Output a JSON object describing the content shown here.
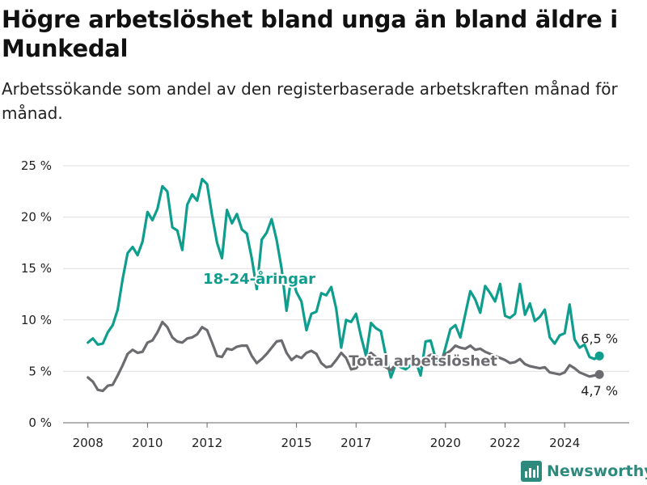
{
  "header": {
    "title": "Högre arbetslöshet bland unga än bland äldre i Munkedal",
    "subtitle": "Arbetssökande som andel av den registerbaserade arbetskraften månad för månad."
  },
  "brand": {
    "name": "Newsworthy",
    "color": "#2f8a7e",
    "icon": "bar-chart-logo-icon"
  },
  "chart_data": {
    "type": "line",
    "title": "Högre arbetslöshet bland unga än bland äldre i Munkedal",
    "subtitle": "Arbetssökande som andel av den registerbaserade arbetskraften månad för månad.",
    "xlabel": "",
    "ylabel": "",
    "x_ticks": [
      "2008",
      "2010",
      "2012",
      "2015",
      "2017",
      "2020",
      "2022",
      "2024"
    ],
    "y_ticks": [
      "0 %",
      "5 %",
      "10 %",
      "15 %",
      "20 %",
      "25 %"
    ],
    "ylim": [
      0,
      25
    ],
    "xlim": [
      "2007-03",
      "2026-03"
    ],
    "grid": true,
    "series": [
      {
        "name": "18-24-åringar",
        "color": "#0f9e8e",
        "end_label": "6,5 %",
        "points": [
          [
            "2008-01",
            7.8
          ],
          [
            "2008-03",
            8.2
          ],
          [
            "2008-05",
            7.6
          ],
          [
            "2008-07",
            7.7
          ],
          [
            "2008-09",
            8.8
          ],
          [
            "2008-11",
            9.5
          ],
          [
            "2009-01",
            11
          ],
          [
            "2009-03",
            14
          ],
          [
            "2009-05",
            16.5
          ],
          [
            "2009-07",
            17.1
          ],
          [
            "2009-09",
            16.3
          ],
          [
            "2009-11",
            17.6
          ],
          [
            "2010-01",
            20.5
          ],
          [
            "2010-03",
            19.7
          ],
          [
            "2010-05",
            20.8
          ],
          [
            "2010-07",
            23
          ],
          [
            "2010-09",
            22.5
          ],
          [
            "2010-11",
            19
          ],
          [
            "2011-01",
            18.7
          ],
          [
            "2011-03",
            16.8
          ],
          [
            "2011-05",
            21.2
          ],
          [
            "2011-07",
            22.2
          ],
          [
            "2011-09",
            21.6
          ],
          [
            "2011-11",
            23.7
          ],
          [
            "2012-01",
            23.2
          ],
          [
            "2012-03",
            20.2
          ],
          [
            "2012-05",
            17.5
          ],
          [
            "2012-07",
            16
          ],
          [
            "2012-09",
            20.7
          ],
          [
            "2012-11",
            19.4
          ],
          [
            "2013-01",
            20.3
          ],
          [
            "2013-03",
            18.8
          ],
          [
            "2013-05",
            18.4
          ],
          [
            "2013-07",
            16
          ],
          [
            "2013-09",
            13
          ],
          [
            "2013-11",
            17.8
          ],
          [
            "2014-01",
            18.5
          ],
          [
            "2014-03",
            19.8
          ],
          [
            "2014-05",
            17.8
          ],
          [
            "2014-07",
            15
          ],
          [
            "2014-09",
            10.9
          ],
          [
            "2014-11",
            14.3
          ],
          [
            "2015-01",
            12.7
          ],
          [
            "2015-03",
            11.8
          ],
          [
            "2015-05",
            9
          ],
          [
            "2015-07",
            10.6
          ],
          [
            "2015-09",
            10.8
          ],
          [
            "2015-11",
            12.6
          ],
          [
            "2016-01",
            12.4
          ],
          [
            "2016-03",
            13.2
          ],
          [
            "2016-05",
            11.1
          ],
          [
            "2016-07",
            7.3
          ],
          [
            "2016-09",
            10
          ],
          [
            "2016-11",
            9.8
          ],
          [
            "2017-01",
            10.6
          ],
          [
            "2017-03",
            8.4
          ],
          [
            "2017-05",
            6.5
          ],
          [
            "2017-07",
            9.7
          ],
          [
            "2017-09",
            9.2
          ],
          [
            "2017-11",
            8.9
          ],
          [
            "2018-01",
            6.5
          ],
          [
            "2018-03",
            4.4
          ],
          [
            "2018-05",
            5.7
          ],
          [
            "2018-07",
            5.4
          ],
          [
            "2018-09",
            5.2
          ],
          [
            "2018-11",
            5.6
          ],
          [
            "2019-01",
            6
          ],
          [
            "2019-03",
            4.6
          ],
          [
            "2019-05",
            7.9
          ],
          [
            "2019-07",
            8
          ],
          [
            "2019-09",
            6.3
          ],
          [
            "2019-11",
            5.6
          ],
          [
            "2020-01",
            7.3
          ],
          [
            "2020-03",
            9.1
          ],
          [
            "2020-05",
            9.5
          ],
          [
            "2020-07",
            8.3
          ],
          [
            "2020-09",
            10.6
          ],
          [
            "2020-11",
            12.8
          ],
          [
            "2021-01",
            12
          ],
          [
            "2021-03",
            10.7
          ],
          [
            "2021-05",
            13.3
          ],
          [
            "2021-07",
            12.6
          ],
          [
            "2021-09",
            11.8
          ],
          [
            "2021-11",
            13.5
          ],
          [
            "2022-01",
            10.4
          ],
          [
            "2022-03",
            10.2
          ],
          [
            "2022-05",
            10.6
          ],
          [
            "2022-07",
            13.5
          ],
          [
            "2022-09",
            10.5
          ],
          [
            "2022-11",
            11.6
          ],
          [
            "2023-01",
            9.9
          ],
          [
            "2023-03",
            10.3
          ],
          [
            "2023-05",
            11
          ],
          [
            "2023-07",
            8.3
          ],
          [
            "2023-09",
            7.7
          ],
          [
            "2023-11",
            8.5
          ],
          [
            "2024-01",
            8.7
          ],
          [
            "2024-03",
            11.5
          ],
          [
            "2024-05",
            8.1
          ],
          [
            "2024-07",
            7.3
          ],
          [
            "2024-09",
            7.6
          ],
          [
            "2024-11",
            6.4
          ],
          [
            "2025-01",
            6.2
          ],
          [
            "2025-03",
            6.5
          ]
        ]
      },
      {
        "name": "Total arbetslöshet",
        "color": "#6c6c70",
        "end_label": "4,7 %",
        "points": [
          [
            "2008-01",
            4.4
          ],
          [
            "2008-03",
            4
          ],
          [
            "2008-05",
            3.2
          ],
          [
            "2008-07",
            3.1
          ],
          [
            "2008-09",
            3.6
          ],
          [
            "2008-11",
            3.7
          ],
          [
            "2009-01",
            4.6
          ],
          [
            "2009-03",
            5.6
          ],
          [
            "2009-05",
            6.7
          ],
          [
            "2009-07",
            7.1
          ],
          [
            "2009-09",
            6.8
          ],
          [
            "2009-11",
            6.9
          ],
          [
            "2010-01",
            7.8
          ],
          [
            "2010-03",
            8
          ],
          [
            "2010-05",
            8.8
          ],
          [
            "2010-07",
            9.8
          ],
          [
            "2010-09",
            9.3
          ],
          [
            "2010-11",
            8.3
          ],
          [
            "2011-01",
            7.9
          ],
          [
            "2011-03",
            7.8
          ],
          [
            "2011-05",
            8.2
          ],
          [
            "2011-07",
            8.3
          ],
          [
            "2011-09",
            8.6
          ],
          [
            "2011-11",
            9.3
          ],
          [
            "2012-01",
            9
          ],
          [
            "2012-03",
            7.8
          ],
          [
            "2012-05",
            6.5
          ],
          [
            "2012-07",
            6.4
          ],
          [
            "2012-09",
            7.2
          ],
          [
            "2012-11",
            7.1
          ],
          [
            "2013-01",
            7.4
          ],
          [
            "2013-03",
            7.5
          ],
          [
            "2013-05",
            7.5
          ],
          [
            "2013-07",
            6.5
          ],
          [
            "2013-09",
            5.8
          ],
          [
            "2013-11",
            6.2
          ],
          [
            "2014-01",
            6.7
          ],
          [
            "2014-03",
            7.3
          ],
          [
            "2014-05",
            7.9
          ],
          [
            "2014-07",
            8
          ],
          [
            "2014-09",
            6.8
          ],
          [
            "2014-11",
            6.1
          ],
          [
            "2015-01",
            6.5
          ],
          [
            "2015-03",
            6.3
          ],
          [
            "2015-05",
            6.8
          ],
          [
            "2015-07",
            7
          ],
          [
            "2015-09",
            6.7
          ],
          [
            "2015-11",
            5.8
          ],
          [
            "2016-01",
            5.4
          ],
          [
            "2016-03",
            5.5
          ],
          [
            "2016-05",
            6.1
          ],
          [
            "2016-07",
            6.8
          ],
          [
            "2016-09",
            6.3
          ],
          [
            "2016-11",
            5.2
          ],
          [
            "2017-01",
            5.3
          ],
          [
            "2017-03",
            5.9
          ],
          [
            "2017-05",
            6.3
          ],
          [
            "2017-07",
            6.8
          ],
          [
            "2017-09",
            6.4
          ],
          [
            "2017-11",
            5.6
          ],
          [
            "2018-01",
            5.4
          ],
          [
            "2018-03",
            5.1
          ],
          [
            "2018-05",
            5.7
          ],
          [
            "2018-07",
            6
          ],
          [
            "2018-09",
            6.1
          ],
          [
            "2018-11",
            6.2
          ],
          [
            "2019-01",
            6
          ],
          [
            "2019-03",
            5.5
          ],
          [
            "2019-05",
            6.3
          ],
          [
            "2019-07",
            6.6
          ],
          [
            "2019-09",
            6.5
          ],
          [
            "2019-11",
            6.2
          ],
          [
            "2020-01",
            6.7
          ],
          [
            "2020-03",
            7
          ],
          [
            "2020-05",
            7.5
          ],
          [
            "2020-07",
            7.3
          ],
          [
            "2020-09",
            7.2
          ],
          [
            "2020-11",
            7.5
          ],
          [
            "2021-01",
            7.1
          ],
          [
            "2021-03",
            7.2
          ],
          [
            "2021-05",
            6.9
          ],
          [
            "2021-07",
            6.7
          ],
          [
            "2021-09",
            6.5
          ],
          [
            "2021-11",
            6.3
          ],
          [
            "2022-01",
            6.1
          ],
          [
            "2022-03",
            5.8
          ],
          [
            "2022-05",
            5.9
          ],
          [
            "2022-07",
            6.2
          ],
          [
            "2022-09",
            5.7
          ],
          [
            "2022-11",
            5.5
          ],
          [
            "2023-01",
            5.4
          ],
          [
            "2023-03",
            5.3
          ],
          [
            "2023-05",
            5.4
          ],
          [
            "2023-07",
            4.9
          ],
          [
            "2023-09",
            4.8
          ],
          [
            "2023-11",
            4.7
          ],
          [
            "2024-01",
            4.9
          ],
          [
            "2024-03",
            5.6
          ],
          [
            "2024-05",
            5.3
          ],
          [
            "2024-07",
            4.9
          ],
          [
            "2024-09",
            4.7
          ],
          [
            "2024-11",
            4.5
          ],
          [
            "2025-01",
            4.6
          ],
          [
            "2025-03",
            4.7
          ]
        ]
      }
    ]
  }
}
